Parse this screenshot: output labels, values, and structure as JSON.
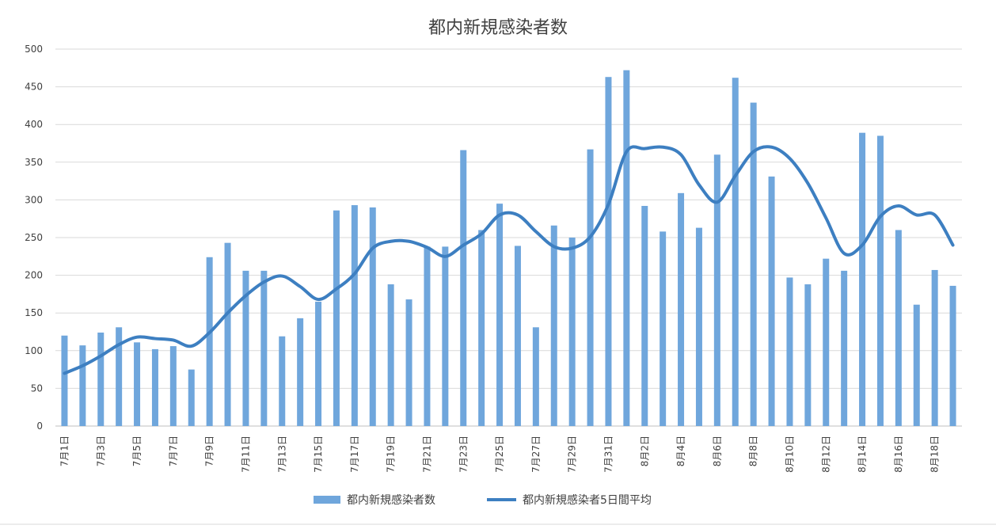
{
  "chart_data": {
    "type": "bar",
    "title": "都内新規感染者数",
    "xlabel": "",
    "ylabel": "",
    "ylim": [
      0,
      500
    ],
    "yticks": [
      0,
      50,
      100,
      150,
      200,
      250,
      300,
      350,
      400,
      450,
      500
    ],
    "grid": true,
    "legend_position": "bottom",
    "colors": {
      "bars": "#6fa6dc",
      "line": "#3d7fc1"
    },
    "categories": [
      "7月1日",
      "7月2日",
      "7月3日",
      "7月4日",
      "7月5日",
      "7月6日",
      "7月7日",
      "7月8日",
      "7月9日",
      "7月10日",
      "7月11日",
      "7月12日",
      "7月13日",
      "7月14日",
      "7月15日",
      "7月16日",
      "7月17日",
      "7月18日",
      "7月19日",
      "7月20日",
      "7月21日",
      "7月22日",
      "7月23日",
      "7月24日",
      "7月25日",
      "7月26日",
      "7月27日",
      "7月28日",
      "7月29日",
      "7月30日",
      "7月31日",
      "8月1日",
      "8月2日",
      "8月3日",
      "8月4日",
      "8月5日",
      "8月6日",
      "8月7日",
      "8月8日",
      "8月9日",
      "8月10日",
      "8月11日",
      "8月12日",
      "8月13日",
      "8月14日",
      "8月15日",
      "8月16日",
      "8月17日",
      "8月18日",
      "8月19日"
    ],
    "tick_labels": [
      "7月1日",
      "",
      "7月3日",
      "",
      "7月5日",
      "",
      "7月7日",
      "",
      "7月9日",
      "",
      "7月11日",
      "",
      "7月13日",
      "",
      "7月15日",
      "",
      "7月17日",
      "",
      "7月19日",
      "",
      "7月21日",
      "",
      "7月23日",
      "",
      "7月25日",
      "",
      "7月27日",
      "",
      "7月29日",
      "",
      "7月31日",
      "",
      "8月2日",
      "",
      "8月4日",
      "",
      "8月6日",
      "",
      "8月8日",
      "",
      "8月10日",
      "",
      "8月12日",
      "",
      "8月14日",
      "",
      "8月16日",
      "",
      "8月18日",
      ""
    ],
    "series": [
      {
        "name": "都内新規感染者数",
        "type": "bar",
        "values": [
          120,
          107,
          124,
          131,
          111,
          102,
          106,
          75,
          224,
          243,
          206,
          206,
          119,
          143,
          165,
          286,
          293,
          290,
          188,
          168,
          238,
          238,
          366,
          260,
          295,
          239,
          131,
          266,
          250,
          367,
          463,
          472,
          292,
          258,
          309,
          263,
          360,
          462,
          429,
          331,
          197,
          188,
          222,
          206,
          389,
          385,
          260,
          161,
          207,
          186
        ]
      },
      {
        "name": "都内新規感染者5日間平均",
        "type": "line",
        "values": [
          70,
          80,
          93,
          108,
          118,
          116,
          114,
          106,
          124,
          150,
          173,
          191,
          199,
          185,
          168,
          182,
          202,
          236,
          245,
          245,
          237,
          225,
          240,
          255,
          280,
          280,
          258,
          238,
          236,
          251,
          294,
          364,
          368,
          370,
          360,
          320,
          297,
          332,
          364,
          370,
          355,
          322,
          276,
          229,
          240,
          278,
          292,
          280,
          280,
          240
        ]
      }
    ]
  }
}
